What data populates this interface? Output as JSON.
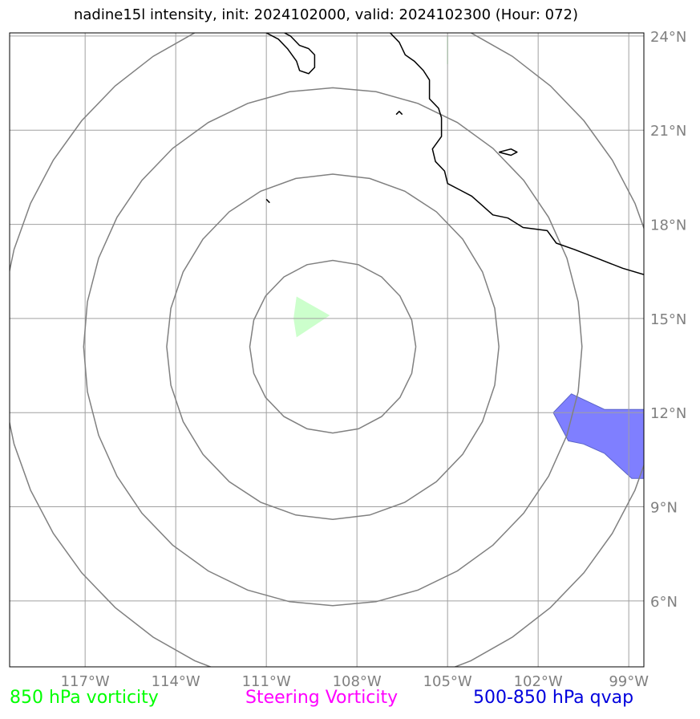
{
  "title": "nadine15l intensity, init: 2024102000, valid: 2024102300 (Hour: 072)",
  "map_extent": {
    "lon_min": -119.5,
    "lon_max": -98.5,
    "lat_min": 3.9,
    "lat_max": 24.1
  },
  "grid": true,
  "lon_ticks": [
    {
      "lon": -117,
      "label": "117°W"
    },
    {
      "lon": -114,
      "label": "114°W"
    },
    {
      "lon": -111,
      "label": "111°W"
    },
    {
      "lon": -108,
      "label": "108°W"
    },
    {
      "lon": -105,
      "label": "105°W"
    },
    {
      "lon": -102,
      "label": "102°W"
    },
    {
      "lon": -99,
      "label": "99°W"
    }
  ],
  "lat_ticks": [
    {
      "lat": 24,
      "label": "24°N"
    },
    {
      "lat": 21,
      "label": "21°N"
    },
    {
      "lat": 18,
      "label": "18°N"
    },
    {
      "lat": 15,
      "label": "15°N"
    },
    {
      "lat": 12,
      "label": "12°N"
    },
    {
      "lat": 9,
      "label": "9°N"
    },
    {
      "lat": 6,
      "label": "6°N"
    }
  ],
  "range_rings": {
    "center": {
      "lon": -108.8,
      "lat": 14.1
    },
    "radii_deg": [
      2.75,
      5.5,
      8.25,
      11.0
    ],
    "color": "#808080"
  },
  "colors": {
    "coast": "#000000",
    "grid": "#a0a0a0",
    "vorticity_850": "#ccffcc",
    "qvap": "#7f7fff",
    "qvap_dark": "#5a64c8"
  },
  "vorticity_850_areas": [
    [
      [
        -110.0,
        15.7
      ],
      [
        -108.9,
        15.1
      ],
      [
        -110.0,
        14.4
      ],
      [
        -110.1,
        15.0
      ]
    ]
  ],
  "qvap_areas": [
    [
      [
        -100.9,
        12.6
      ],
      [
        -99.8,
        12.1
      ],
      [
        -98.5,
        12.1
      ],
      [
        -98.5,
        9.9
      ],
      [
        -98.9,
        9.9
      ],
      [
        -99.8,
        10.7
      ],
      [
        -100.5,
        11.0
      ],
      [
        -101.0,
        11.1
      ],
      [
        -101.5,
        12.0
      ]
    ]
  ],
  "coastlines": [
    [
      [
        -111.0,
        24.1
      ],
      [
        -110.6,
        23.9
      ],
      [
        -110.3,
        23.6
      ],
      [
        -110.0,
        23.2
      ],
      [
        -109.9,
        22.9
      ],
      [
        -109.6,
        22.8
      ],
      [
        -109.4,
        23.0
      ],
      [
        -109.4,
        23.4
      ],
      [
        -109.6,
        23.6
      ],
      [
        -109.9,
        23.7
      ],
      [
        -110.2,
        24.0
      ],
      [
        -110.4,
        24.1
      ]
    ],
    [
      [
        -106.9,
        24.1
      ],
      [
        -106.6,
        23.8
      ],
      [
        -106.4,
        23.4
      ],
      [
        -106.1,
        23.2
      ],
      [
        -105.8,
        22.9
      ],
      [
        -105.6,
        22.6
      ],
      [
        -105.6,
        22.0
      ],
      [
        -105.3,
        21.7
      ],
      [
        -105.2,
        21.4
      ],
      [
        -105.2,
        20.8
      ],
      [
        -105.5,
        20.4
      ],
      [
        -105.4,
        20.0
      ],
      [
        -105.1,
        19.7
      ],
      [
        -105.0,
        19.3
      ],
      [
        -104.6,
        19.1
      ],
      [
        -104.2,
        18.9
      ],
      [
        -103.5,
        18.3
      ],
      [
        -103.0,
        18.2
      ],
      [
        -102.5,
        17.9
      ],
      [
        -101.7,
        17.8
      ],
      [
        -101.4,
        17.4
      ],
      [
        -100.8,
        17.2
      ],
      [
        -100.0,
        16.9
      ],
      [
        -99.2,
        16.6
      ],
      [
        -98.5,
        16.4
      ]
    ],
    [
      [
        -106.7,
        21.5
      ],
      [
        -106.6,
        21.6
      ],
      [
        -106.5,
        21.5
      ]
    ],
    [
      [
        -103.3,
        20.3
      ],
      [
        -102.9,
        20.4
      ],
      [
        -102.7,
        20.3
      ],
      [
        -102.9,
        20.2
      ],
      [
        -103.3,
        20.3
      ]
    ],
    [
      [
        -111.0,
        18.8
      ],
      [
        -110.9,
        18.7
      ],
      [
        -111.0,
        18.8
      ]
    ]
  ],
  "hint_line": {
    "from": {
      "lon": -105.0,
      "lat": 24.0
    },
    "to": {
      "lon": -105.0,
      "lat": 23.1
    },
    "color": "#ccffcc"
  },
  "legend": {
    "vorticity_850": {
      "label": "850 hPa vorticity",
      "color": "#00ff00"
    },
    "steering": {
      "label": "Steering Vorticity",
      "color": "#ff00ff"
    },
    "qvap": {
      "label": "500-850 hPa qvap",
      "color": "#0000dd"
    }
  }
}
